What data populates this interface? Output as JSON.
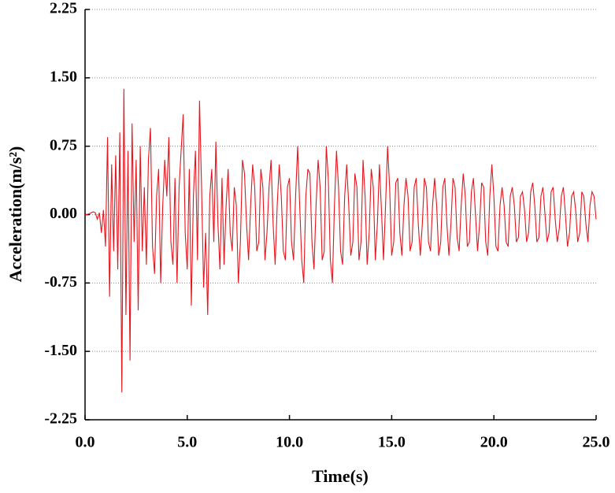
{
  "chart_data": {
    "type": "line",
    "xlabel": "Time(s)",
    "ylabel": "Acceleration(m/s²)",
    "xlim": [
      0,
      25
    ],
    "ylim": [
      -2.25,
      2.25
    ],
    "xticks": [
      {
        "value": 0,
        "label": "0.0"
      },
      {
        "value": 5,
        "label": "5.0"
      },
      {
        "value": 10,
        "label": "10.0"
      },
      {
        "value": 15,
        "label": "15.0"
      },
      {
        "value": 20,
        "label": "20.0"
      },
      {
        "value": 25,
        "label": "25.0"
      }
    ],
    "yticks": [
      -2.25,
      {
        "value": -1.5,
        "label": "-1.50"
      },
      -0.75,
      {
        "value": 0,
        "label": "0.00"
      },
      0.75,
      {
        "value": 1.5,
        "label": "1.50"
      },
      2.25
    ],
    "grid": true,
    "x": [
      0,
      0.1,
      0.2,
      0.3,
      0.4,
      0.5,
      0.6,
      0.7,
      0.8,
      0.9,
      1,
      1.1,
      1.2,
      1.3,
      1.4,
      1.5,
      1.6,
      1.7,
      1.8,
      1.9,
      2,
      2.1,
      2.2,
      2.3,
      2.4,
      2.5,
      2.6,
      2.7,
      2.8,
      2.9,
      3,
      3.1,
      3.2,
      3.3,
      3.4,
      3.5,
      3.6,
      3.7,
      3.8,
      3.9,
      4,
      4.1,
      4.2,
      4.3,
      4.4,
      4.5,
      4.6,
      4.7,
      4.8,
      4.9,
      5,
      5.1,
      5.2,
      5.3,
      5.4,
      5.5,
      5.6,
      5.7,
      5.8,
      5.9,
      6,
      6.1,
      6.2,
      6.3,
      6.4,
      6.5,
      6.6,
      6.7,
      6.8,
      6.9,
      7,
      7.1,
      7.2,
      7.3,
      7.4,
      7.5,
      7.6,
      7.7,
      7.8,
      7.9,
      8,
      8.1,
      8.2,
      8.3,
      8.4,
      8.5,
      8.6,
      8.7,
      8.8,
      8.9,
      9,
      9.1,
      9.2,
      9.3,
      9.4,
      9.5,
      9.6,
      9.7,
      9.8,
      9.9,
      10,
      10.1,
      10.2,
      10.3,
      10.4,
      10.5,
      10.6,
      10.7,
      10.8,
      10.9,
      11,
      11.1,
      11.2,
      11.3,
      11.4,
      11.5,
      11.6,
      11.7,
      11.8,
      11.9,
      12,
      12.1,
      12.2,
      12.3,
      12.4,
      12.5,
      12.6,
      12.7,
      12.8,
      12.9,
      13,
      13.1,
      13.2,
      13.3,
      13.4,
      13.5,
      13.6,
      13.7,
      13.8,
      13.9,
      14,
      14.1,
      14.2,
      14.3,
      14.4,
      14.5,
      14.6,
      14.7,
      14.8,
      14.9,
      15,
      15.1,
      15.2,
      15.3,
      15.4,
      15.5,
      15.6,
      15.7,
      15.8,
      15.9,
      16,
      16.1,
      16.2,
      16.3,
      16.4,
      16.5,
      16.6,
      16.7,
      16.8,
      16.9,
      17,
      17.1,
      17.2,
      17.3,
      17.4,
      17.5,
      17.6,
      17.7,
      17.8,
      17.9,
      18,
      18.1,
      18.2,
      18.3,
      18.4,
      18.5,
      18.6,
      18.7,
      18.8,
      18.9,
      19,
      19.1,
      19.2,
      19.3,
      19.4,
      19.5,
      19.6,
      19.7,
      19.8,
      19.9,
      20,
      20.1,
      20.2,
      20.3,
      20.4,
      20.5,
      20.6,
      20.7,
      20.8,
      20.9,
      21,
      21.1,
      21.2,
      21.3,
      21.4,
      21.5,
      21.6,
      21.7,
      21.8,
      21.9,
      22,
      22.1,
      22.2,
      22.3,
      22.4,
      22.5,
      22.6,
      22.7,
      22.8,
      22.9,
      23,
      23.1,
      23.2,
      23.3,
      23.4,
      23.5,
      23.6,
      23.7,
      23.8,
      23.9,
      24,
      24.1,
      24.2,
      24.3,
      24.4,
      24.5,
      24.6,
      24.7,
      24.8,
      24.9,
      25
    ],
    "series": [
      {
        "color": "#e8141c",
        "values": [
          0,
          0,
          0.01,
          0.02,
          0.03,
          0.02,
          -0.05,
          0.02,
          -0.2,
          0.05,
          -0.35,
          0.85,
          -0.9,
          0.55,
          -0.4,
          0.65,
          -0.6,
          0.9,
          -1.95,
          1.38,
          -1.1,
          0.7,
          -1.6,
          1.0,
          -0.3,
          0.6,
          -1.05,
          0.75,
          -0.4,
          0.3,
          -0.55,
          0.6,
          0.95,
          -0.35,
          -0.65,
          0.2,
          0.5,
          -0.75,
          0.1,
          0.6,
          0.2,
          0.85,
          -0.3,
          -0.55,
          0.4,
          -0.75,
          0.3,
          0.7,
          1.1,
          -0.2,
          -0.6,
          0.5,
          -1.0,
          0.2,
          0.7,
          -0.5,
          1.25,
          0.3,
          -0.8,
          -0.2,
          -1.1,
          0.2,
          0.5,
          -0.3,
          0.8,
          -0.1,
          -0.6,
          0.4,
          -0.55,
          0.1,
          0.5,
          -0.2,
          -0.4,
          0.3,
          0.1,
          -0.75,
          -0.3,
          0.6,
          0.45,
          -0.1,
          -0.5,
          0.1,
          0.55,
          0.3,
          -0.4,
          -0.3,
          0.5,
          0.3,
          -0.5,
          -0.2,
          0.3,
          0.6,
          -0.1,
          -0.55,
          0.1,
          0.55,
          0.2,
          -0.4,
          -0.5,
          0.3,
          0.4,
          -0.3,
          -0.5,
          0.2,
          0.75,
          0.1,
          -0.5,
          -0.75,
          0.2,
          0.5,
          0.45,
          -0.3,
          -0.6,
          0.1,
          0.6,
          0.3,
          -0.5,
          -0.4,
          0.75,
          0.4,
          -0.5,
          -0.75,
          0.1,
          0.7,
          0.3,
          -0.4,
          -0.55,
          0.2,
          0.55,
          0.1,
          -0.45,
          -0.3,
          0.45,
          0.3,
          -0.5,
          -0.3,
          0.6,
          0.2,
          -0.55,
          -0.2,
          0.5,
          0.3,
          -0.5,
          -0.1,
          0.55,
          0.05,
          -0.5,
          0.1,
          0.75,
          0.3,
          -0.45,
          -0.3,
          0.35,
          0.4,
          -0.2,
          -0.45,
          0.1,
          0.4,
          0.2,
          -0.4,
          -0.3,
          0.3,
          0.4,
          -0.1,
          -0.45,
          -0.1,
          0.4,
          0.3,
          -0.3,
          -0.4,
          0.1,
          0.4,
          0.1,
          -0.45,
          -0.3,
          0.3,
          0.4,
          -0.1,
          -0.45,
          -0.1,
          0.4,
          0.3,
          -0.25,
          -0.4,
          0.1,
          0.45,
          0.2,
          -0.35,
          -0.3,
          0.25,
          0.4,
          0.0,
          -0.4,
          -0.1,
          0.35,
          0.3,
          -0.3,
          -0.45,
          0.2,
          0.55,
          0.2,
          -0.35,
          -0.4,
          0.1,
          0.3,
          0.1,
          -0.3,
          -0.35,
          0.2,
          0.3,
          0.1,
          -0.3,
          -0.25,
          0.2,
          0.25,
          0.05,
          -0.3,
          -0.2,
          0.25,
          0.35,
          0.1,
          -0.3,
          -0.25,
          0.2,
          0.3,
          0.0,
          -0.3,
          -0.2,
          0.25,
          0.3,
          -0.05,
          -0.3,
          -0.15,
          0.2,
          0.3,
          0.0,
          -0.35,
          -0.2,
          0.2,
          0.25,
          0.05,
          -0.3,
          -0.2,
          0.25,
          0.2,
          -0.1,
          -0.3,
          0.1,
          0.25,
          0.2,
          -0.05
        ]
      }
    ]
  }
}
